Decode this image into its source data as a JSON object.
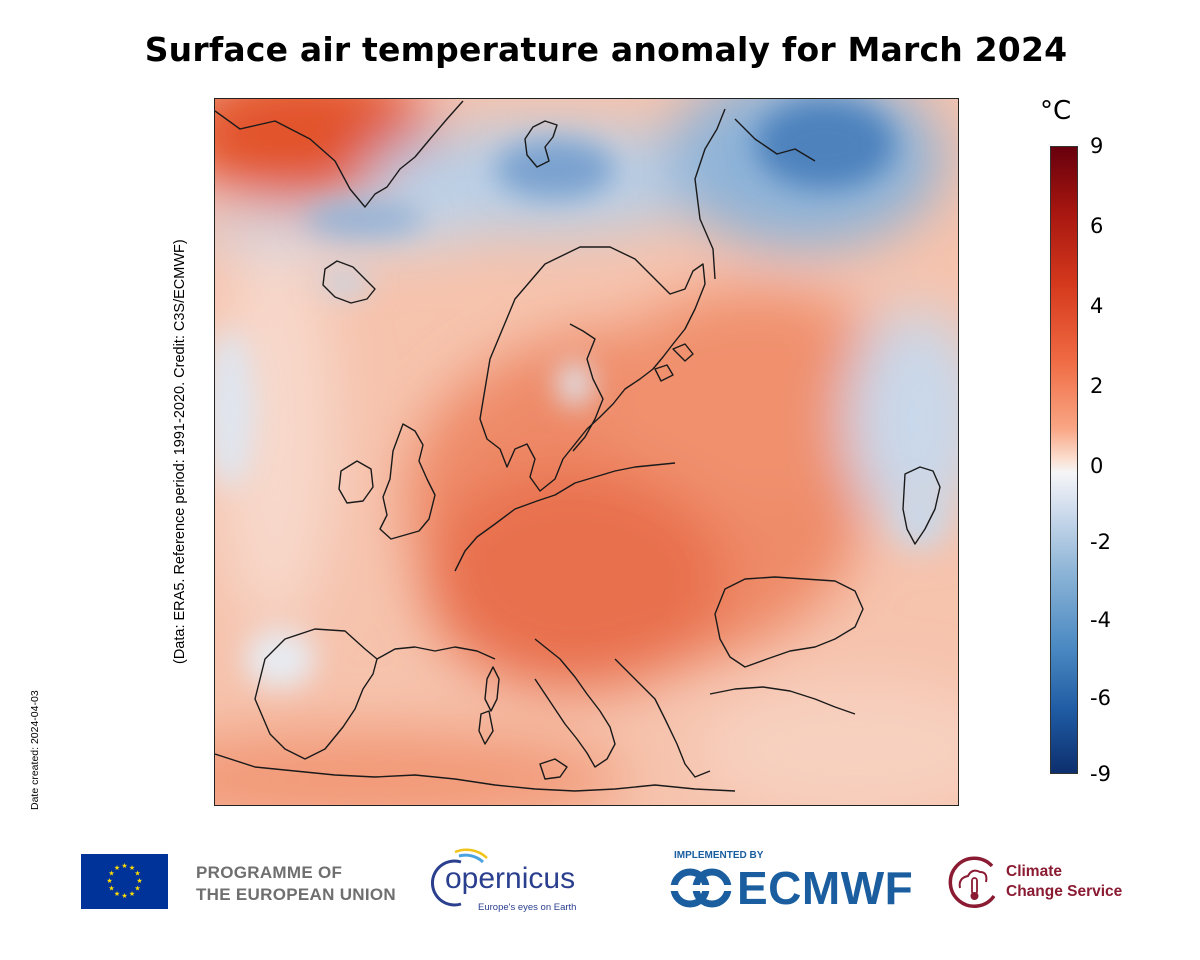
{
  "title": "Surface air temperature anomaly for March 2024",
  "credit_text": "(Data: ERA5.  Reference period: 1991-2020.  Credit: C3S/ECMWF)",
  "date_created": "Date created: 2024-04-03",
  "colorbar": {
    "unit": "°C",
    "ticks": [
      "9",
      "6",
      "4",
      "2",
      "0",
      "-2",
      "-4",
      "-6",
      "-9"
    ],
    "range": [
      -9,
      9
    ],
    "colors": [
      "#67000d",
      "#d5391d",
      "#f9a685",
      "#f5f5f7",
      "#8cb4d6",
      "#1f5ba3",
      "#0d2f6e"
    ]
  },
  "map": {
    "region": "Europe",
    "variable": "surface air temperature anomaly",
    "coastline_color": "#1a1a1a"
  },
  "footer": {
    "eu_programme_line1": "PROGRAMME OF",
    "eu_programme_line2": "THE EUROPEAN UNION",
    "copernicus_word": "opernicus",
    "copernicus_tagline": "Europe's eyes on Earth",
    "implemented_by": "IMPLEMENTED BY",
    "ecmwf": "ECMWF",
    "c3s_line1": "Climate",
    "c3s_line2": "Change Service"
  }
}
